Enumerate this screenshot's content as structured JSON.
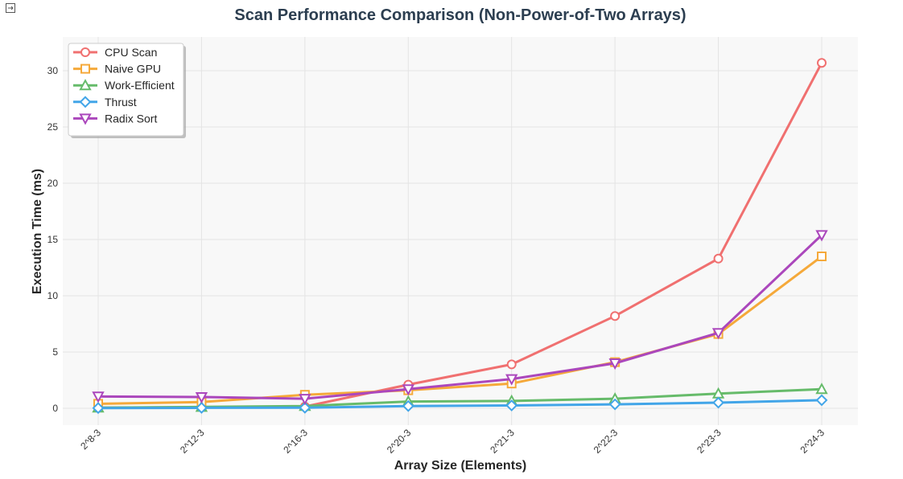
{
  "chart_data": {
    "type": "line",
    "title": "Scan Performance Comparison (Non-Power-of-Two Arrays)",
    "xlabel": "Array Size (Elements)",
    "ylabel": "Execution Time (ms)",
    "categories": [
      "2^8-3",
      "2^12-3",
      "2^16-3",
      "2^20-3",
      "2^21-3",
      "2^22-3",
      "2^23-3",
      "2^24-3"
    ],
    "ylim": [
      -1.5,
      33
    ],
    "yticks": [
      0,
      5,
      10,
      15,
      20,
      25,
      30
    ],
    "grid": true,
    "legend_position": "top-left",
    "series": [
      {
        "name": "CPU Scan",
        "color": "#f07070",
        "marker": "circle",
        "values": [
          0.05,
          0.1,
          0.15,
          2.1,
          3.9,
          8.2,
          13.3,
          30.7
        ]
      },
      {
        "name": "Naive GPU",
        "color": "#f5a93a",
        "marker": "square",
        "values": [
          0.4,
          0.55,
          1.2,
          1.6,
          2.2,
          4.1,
          6.6,
          13.5
        ]
      },
      {
        "name": "Work-Efficient",
        "color": "#66bb6a",
        "marker": "triangle-up",
        "values": [
          0.05,
          0.12,
          0.2,
          0.6,
          0.65,
          0.85,
          1.3,
          1.7
        ]
      },
      {
        "name": "Thrust",
        "color": "#42a5e8",
        "marker": "diamond",
        "values": [
          0.02,
          0.04,
          0.05,
          0.2,
          0.25,
          0.35,
          0.5,
          0.72
        ]
      },
      {
        "name": "Radix Sort",
        "color": "#ab47bc",
        "marker": "triangle-down",
        "values": [
          1.05,
          1.0,
          0.85,
          1.7,
          2.6,
          4.0,
          6.7,
          15.4
        ]
      }
    ]
  },
  "corner_icon": "expand-icon"
}
